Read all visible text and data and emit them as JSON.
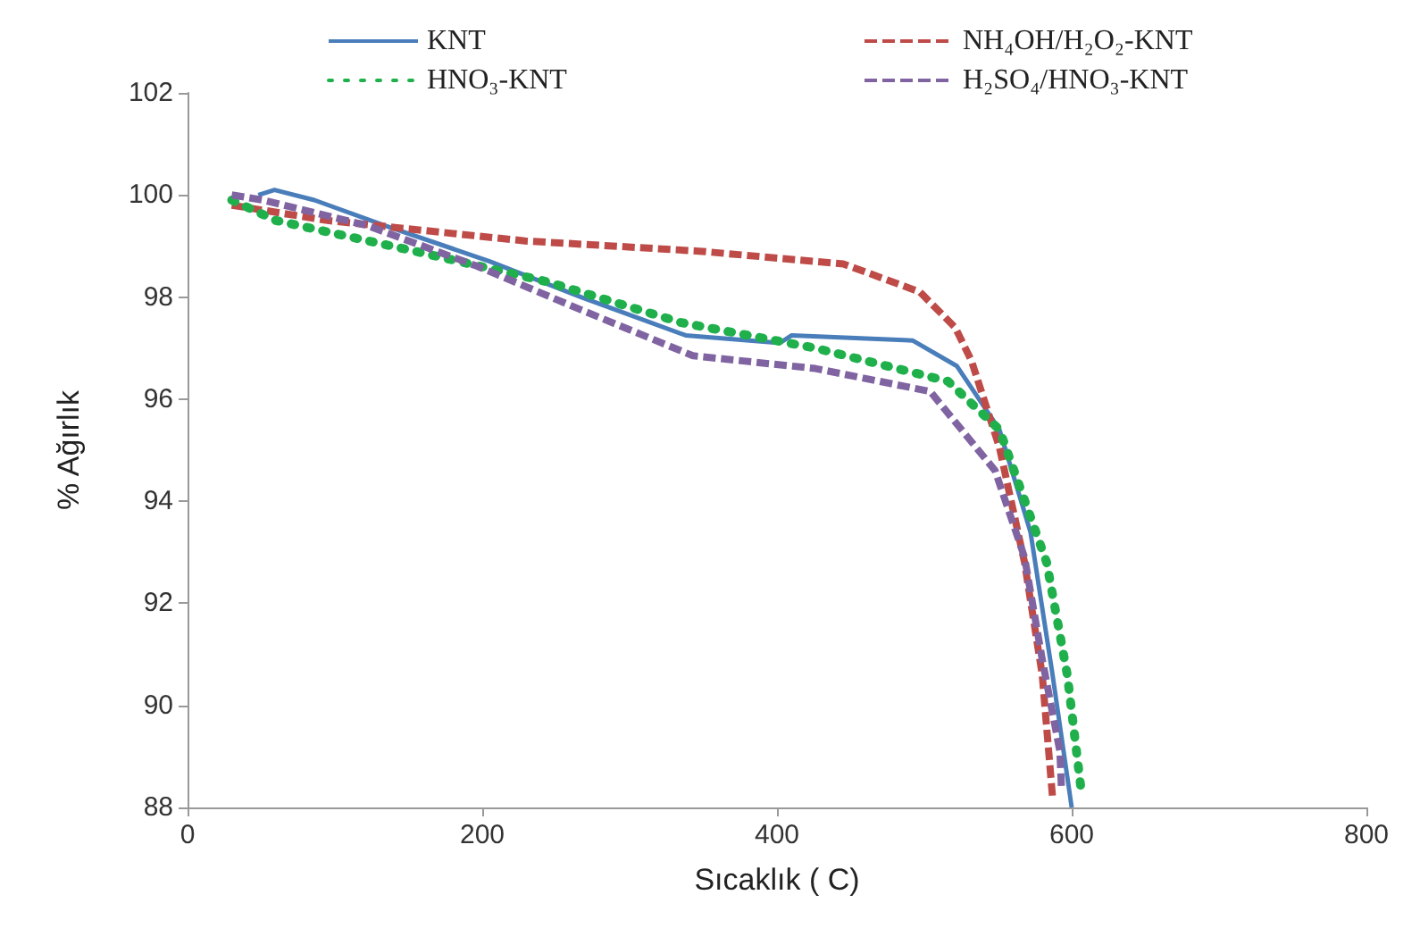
{
  "chart_data": {
    "type": "line",
    "xlabel": "Sıcaklık ( C)",
    "ylabel": "% Ağırlık",
    "xlim": [
      0,
      800
    ],
    "xticks": [
      0,
      200,
      400,
      600,
      800
    ],
    "ylim": [
      88,
      102
    ],
    "yticks": [
      88,
      90,
      92,
      94,
      96,
      98,
      100,
      102
    ],
    "grid": false,
    "legend": "top",
    "marker": "none",
    "series": [
      {
        "name": "KNT",
        "color": "#4a7ebb",
        "line_style": "solid",
        "x": [
          48,
          59,
          86,
          134,
          205,
          267,
          338,
          402,
          410,
          492,
          522,
          551,
          572,
          587,
          600
        ],
        "values": [
          100.0,
          100.1,
          99.9,
          99.4,
          98.7,
          98.0,
          97.25,
          97.1,
          97.25,
          97.15,
          96.65,
          95.4,
          93.4,
          90.6,
          88.0
        ]
      },
      {
        "name": "NH₄OH/H₂O₂-KNT",
        "color": "#be4b48",
        "line_style": "dashed",
        "x": [
          30,
          95,
          229,
          347,
          445,
          497,
          521,
          532,
          551,
          568,
          580,
          587
        ],
        "values": [
          99.8,
          99.5,
          99.1,
          98.9,
          98.65,
          98.1,
          97.4,
          96.75,
          95.05,
          92.8,
          90.6,
          88.2
        ]
      },
      {
        "name": "HNO₃-KNT",
        "color": "#1fb04c",
        "line_style": "dotted",
        "x": [
          30,
          60,
          154,
          244,
          335,
          426,
          516,
          551,
          583,
          597,
          607
        ],
        "values": [
          99.9,
          99.5,
          98.9,
          98.3,
          97.5,
          97.0,
          96.35,
          95.4,
          92.8,
          90.6,
          88.2
        ]
      },
      {
        "name": "H₂SO₄/HNO₃-KNT",
        "color": "#8064a2",
        "line_style": "dashed",
        "x": [
          30,
          51,
          122,
          197,
          267,
          343,
          426,
          504,
          548,
          568,
          580,
          592,
          593
        ],
        "values": [
          100.0,
          99.9,
          99.4,
          98.6,
          97.75,
          96.85,
          96.6,
          96.15,
          94.6,
          92.9,
          90.9,
          89.1,
          88.4
        ]
      }
    ]
  }
}
